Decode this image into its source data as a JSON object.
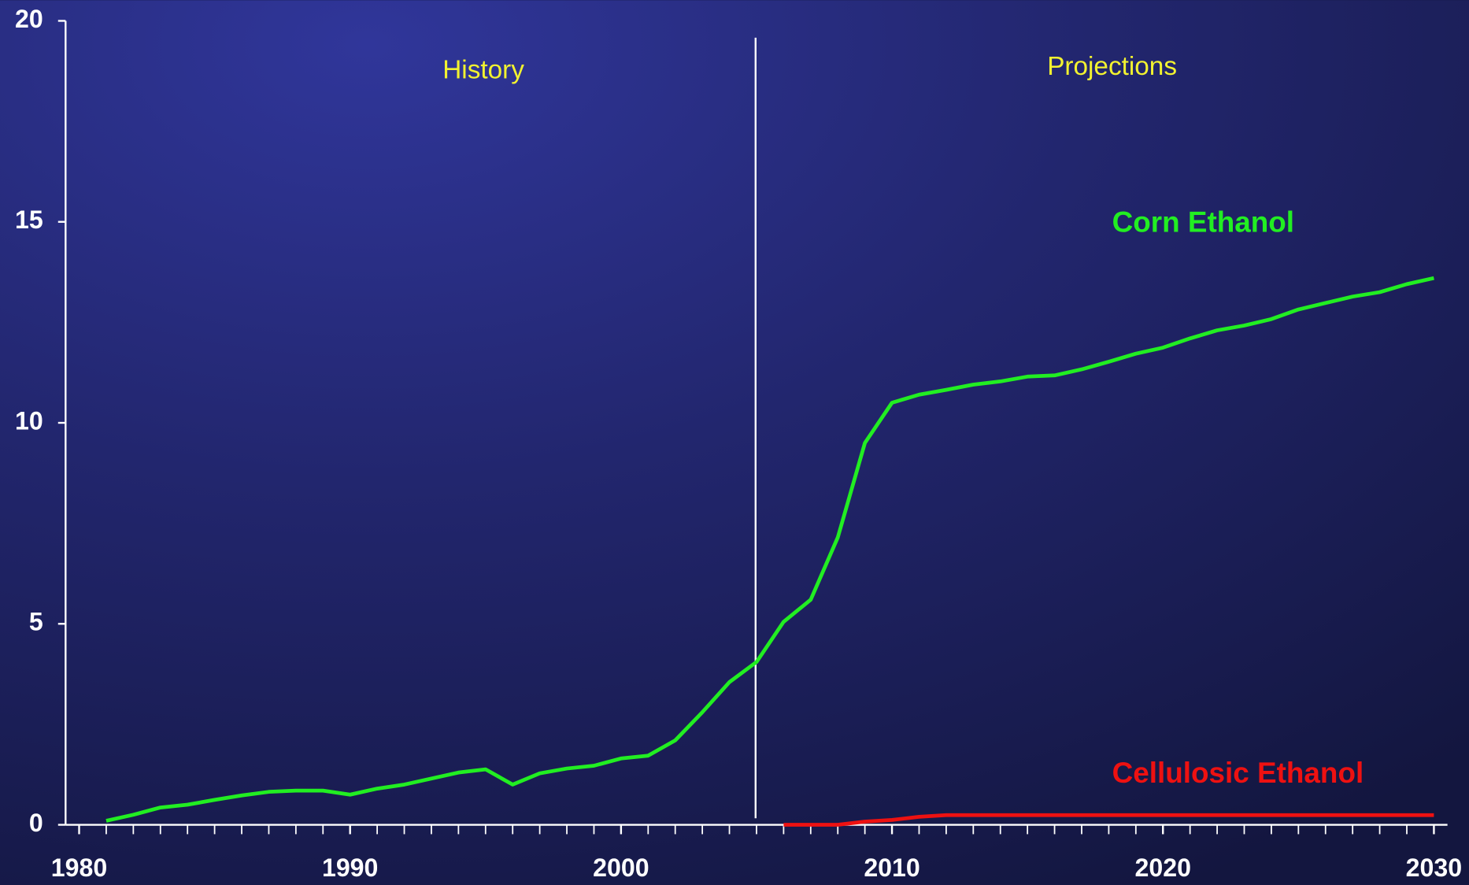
{
  "chart_data": {
    "type": "line",
    "x": [
      1981,
      1982,
      1983,
      1984,
      1985,
      1986,
      1987,
      1988,
      1989,
      1990,
      1991,
      1992,
      1993,
      1994,
      1995,
      1996,
      1997,
      1998,
      1999,
      2000,
      2001,
      2002,
      2003,
      2004,
      2005,
      2006,
      2007,
      2008,
      2009,
      2010,
      2011,
      2012,
      2013,
      2014,
      2015,
      2016,
      2017,
      2018,
      2019,
      2020,
      2021,
      2022,
      2023,
      2024,
      2025,
      2026,
      2027,
      2028,
      2029,
      2030
    ],
    "series": [
      {
        "name": "Corn Ethanol",
        "color": "#22ee22",
        "values": [
          0.1,
          0.25,
          0.43,
          0.5,
          0.62,
          0.73,
          0.82,
          0.85,
          0.85,
          0.75,
          0.9,
          1.0,
          1.15,
          1.3,
          1.38,
          1.0,
          1.28,
          1.4,
          1.47,
          1.65,
          1.72,
          2.1,
          2.8,
          3.55,
          4.05,
          5.05,
          5.6,
          7.15,
          9.5,
          10.5,
          10.7,
          10.82,
          10.95,
          11.03,
          11.15,
          11.18,
          11.33,
          11.52,
          11.72,
          11.87,
          12.1,
          12.3,
          12.42,
          12.58,
          12.82,
          12.98,
          13.14,
          13.25,
          13.45,
          13.6
        ]
      },
      {
        "name": "Cellulosic Ethanol",
        "color": "#ee1111",
        "values": [
          null,
          null,
          null,
          null,
          null,
          null,
          null,
          null,
          null,
          null,
          null,
          null,
          null,
          null,
          null,
          null,
          null,
          null,
          null,
          null,
          null,
          null,
          null,
          null,
          null,
          0,
          0,
          0,
          0.08,
          0.12,
          0.2,
          0.24,
          0.24,
          0.24,
          0.24,
          0.24,
          0.24,
          0.24,
          0.24,
          0.24,
          0.24,
          0.24,
          0.24,
          0.24,
          0.24,
          0.24,
          0.24,
          0.24,
          0.24,
          0.24
        ]
      }
    ],
    "annotations": [
      "History",
      "Projections"
    ],
    "divider_x": 2005,
    "xlim": [
      1979.5,
      2030.5
    ],
    "xticks": [
      1980,
      1990,
      2000,
      2010,
      2020,
      2030
    ],
    "xminor_ticks": [
      1980,
      1981,
      1982,
      1983,
      1984,
      1985,
      1986,
      1987,
      1988,
      1989,
      1990,
      1991,
      1992,
      1993,
      1994,
      1995,
      1996,
      1997,
      1998,
      1999,
      2000,
      2001,
      2002,
      2003,
      2004,
      2005,
      2006,
      2007,
      2008,
      2009,
      2010,
      2011,
      2012,
      2013,
      2014,
      2015,
      2016,
      2017,
      2018,
      2019,
      2020,
      2021,
      2022,
      2023,
      2024,
      2025,
      2026,
      2027,
      2028,
      2029,
      2030
    ],
    "ylim": [
      0,
      20
    ],
    "yticks": [
      0,
      5,
      10,
      15,
      20
    ]
  }
}
